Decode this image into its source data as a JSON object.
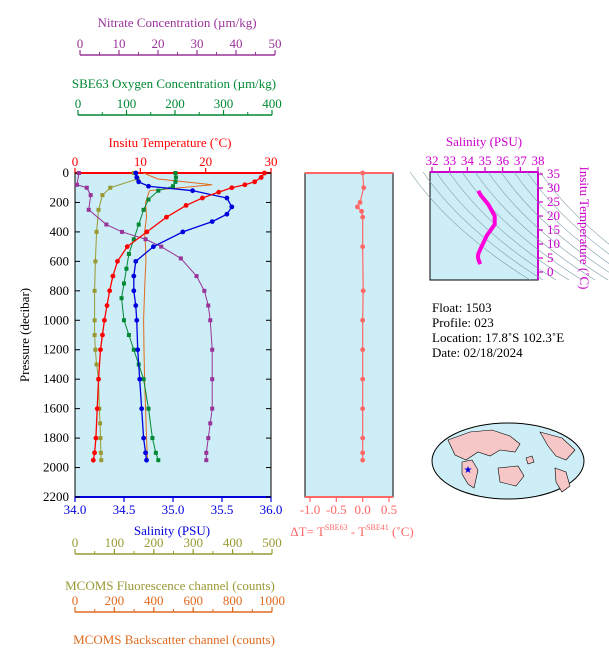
{
  "colors": {
    "panel_bg": "#cdeef6",
    "temperature": "#ff0000",
    "salinity": "#0000dd",
    "nitrate": "#993399",
    "oxygen": "#008833",
    "fluorescence": "#999933",
    "backscatter": "#e06a1e",
    "delta_t": "#ff6666",
    "ts_curve": "#ff00dd",
    "ts_axis": "#cc00cc"
  },
  "axes": {
    "nitrate": {
      "title": "Nitrate Concentration (µm/kg)",
      "ticks": [
        "0",
        "10",
        "20",
        "30",
        "40",
        "50"
      ],
      "range": [
        0,
        50
      ]
    },
    "oxygen": {
      "title": "SBE63 Oxygen Concentration (µm/kg)",
      "ticks": [
        "0",
        "100",
        "200",
        "300",
        "400"
      ],
      "range": [
        0,
        400
      ]
    },
    "temperature": {
      "title": "Insitu Temperature (˚C)",
      "ticks": [
        "0",
        "10",
        "20",
        "30"
      ],
      "range": [
        0,
        30
      ]
    },
    "salinity": {
      "title": "Salinity (PSU)",
      "ticks": [
        "34.0",
        "34.5",
        "35.0",
        "35.5",
        "36.0"
      ],
      "range": [
        34.0,
        36.0
      ]
    },
    "pressure": {
      "title": "Pressure (decibar)",
      "ticks": [
        "0",
        "200",
        "400",
        "600",
        "800",
        "1000",
        "1200",
        "1400",
        "1600",
        "1800",
        "2000",
        "2200"
      ],
      "range": [
        0,
        2200
      ]
    },
    "fluorescence": {
      "title": "MCOMS Fluorescence channel (counts)",
      "ticks": [
        "0",
        "100",
        "200",
        "300",
        "400",
        "500"
      ],
      "range": [
        0,
        500
      ]
    },
    "backscatter": {
      "title": "MCOMS Backscatter channel (counts)",
      "ticks": [
        "0",
        "200",
        "400",
        "600",
        "800",
        "1000"
      ],
      "range": [
        0,
        1000
      ]
    },
    "delta_t": {
      "title_main": "ΔT= T",
      "sup1": "SBE63",
      "mid": " - T",
      "sup2": "SBE41",
      "unit": " (˚C)",
      "ticks": [
        "-1.0",
        "-0.5",
        "0.0",
        "0.5"
      ],
      "range": [
        -1.0,
        0.5
      ]
    },
    "ts_salinity": {
      "title": "Salinity (PSU)",
      "ticks": [
        "32",
        "33",
        "34",
        "35",
        "36",
        "37",
        "38"
      ],
      "range": [
        32,
        38
      ]
    },
    "ts_temperature": {
      "title": "Insitu Temperature (˚C)",
      "ticks": [
        "0",
        "5",
        "10",
        "15",
        "20",
        "25",
        "30",
        "35"
      ],
      "range": [
        0,
        35
      ]
    }
  },
  "info": {
    "float": "Float:  1503",
    "profile": "Profile:  023",
    "location": "Location:  17.8˚S  102.3˚E",
    "date": "Date:  02/18/2024"
  },
  "chart_data": [
    {
      "type": "line",
      "name": "Insitu Temperature",
      "x": [
        29.0,
        28.5,
        27.5,
        26.0,
        24.0,
        22.0,
        19.5,
        17.0,
        14.0,
        11.0,
        8.0,
        6.5,
        5.8,
        5.3,
        4.9,
        4.5,
        4.2,
        3.9,
        3.6,
        3.4,
        3.2,
        3.0,
        2.8
      ],
      "y": [
        0,
        30,
        60,
        80,
        100,
        130,
        170,
        220,
        300,
        400,
        500,
        600,
        700,
        800,
        900,
        1000,
        1100,
        1200,
        1400,
        1600,
        1800,
        1900,
        1950
      ],
      "xlim": [
        0,
        30
      ],
      "ylim": [
        2200,
        0
      ]
    },
    {
      "type": "line",
      "name": "Salinity",
      "x": [
        34.62,
        34.63,
        34.65,
        34.75,
        35.2,
        35.55,
        35.6,
        35.55,
        35.4,
        35.1,
        34.8,
        34.62,
        34.6,
        34.6,
        34.62,
        34.63,
        34.64,
        34.66,
        34.68,
        34.7,
        34.72,
        34.73
      ],
      "y": [
        0,
        30,
        60,
        90,
        120,
        170,
        230,
        280,
        330,
        400,
        500,
        600,
        700,
        800,
        900,
        1000,
        1200,
        1400,
        1600,
        1800,
        1900,
        1950
      ],
      "xlim": [
        34.0,
        36.0
      ],
      "ylim": [
        2200,
        0
      ]
    },
    {
      "type": "line",
      "name": "Nitrate Concentration",
      "x": [
        1,
        0.5,
        3,
        4,
        3.5,
        8,
        12,
        18,
        22,
        27,
        31,
        33,
        34,
        34.5,
        35,
        35,
        35,
        34.5,
        34,
        33.5,
        33.5
      ],
      "y": [
        0,
        80,
        100,
        150,
        250,
        350,
        400,
        450,
        500,
        580,
        700,
        800,
        900,
        1000,
        1200,
        1400,
        1600,
        1700,
        1800,
        1900,
        1950
      ],
      "xlim": [
        0,
        50
      ],
      "ylim": [
        2200,
        0
      ]
    },
    {
      "type": "line",
      "name": "SBE63 Oxygen Concentration",
      "x": [
        205,
        206,
        205,
        200,
        170,
        150,
        140,
        130,
        120,
        110,
        105,
        100,
        95,
        100,
        110,
        120,
        130,
        140,
        150,
        158,
        165,
        170
      ],
      "y": [
        0,
        30,
        60,
        90,
        120,
        180,
        250,
        350,
        450,
        550,
        650,
        750,
        850,
        1000,
        1100,
        1200,
        1300,
        1400,
        1600,
        1800,
        1900,
        1950
      ],
      "xlim": [
        0,
        400
      ],
      "ylim": [
        2200,
        0
      ]
    },
    {
      "type": "line",
      "name": "MCOMS Fluorescence channel",
      "x": [
        150,
        160,
        90,
        70,
        60,
        55,
        52,
        50,
        50,
        50,
        52,
        55,
        60,
        62,
        64,
        65,
        66,
        67
      ],
      "y": [
        0,
        40,
        100,
        150,
        250,
        400,
        600,
        800,
        1000,
        1100,
        1200,
        1300,
        1400,
        1600,
        1700,
        1800,
        1900,
        1950
      ],
      "xlim": [
        0,
        500
      ],
      "ylim": [
        2200,
        0
      ]
    },
    {
      "type": "line",
      "name": "MCOMS Backscatter channel",
      "x": [
        350,
        420,
        700,
        380,
        360,
        365,
        355,
        360,
        362,
        358,
        355,
        350,
        352,
        355,
        360,
        365,
        368,
        370
      ],
      "y": [
        0,
        40,
        80,
        120,
        200,
        300,
        400,
        500,
        600,
        700,
        800,
        1000,
        1200,
        1400,
        1600,
        1800,
        1900,
        1950
      ],
      "xlim": [
        0,
        1000
      ],
      "ylim": [
        2200,
        0
      ]
    },
    {
      "type": "line",
      "name": "ΔT",
      "x": [
        0.0,
        0.02,
        -0.05,
        -0.1,
        -0.02,
        0.0,
        0.0,
        0.01,
        0.0,
        0.0,
        0.0,
        0.0,
        0.0,
        0.0,
        0.0
      ],
      "y": [
        0,
        100,
        200,
        230,
        260,
        300,
        500,
        800,
        1000,
        1200,
        1400,
        1600,
        1800,
        1900,
        1950
      ],
      "xlim": [
        -1.0,
        0.5
      ],
      "ylim": [
        2200,
        0
      ]
    },
    {
      "type": "line",
      "name": "T-S",
      "x": [
        34.62,
        34.75,
        35.2,
        35.55,
        35.55,
        35.1,
        34.8,
        34.62,
        34.6,
        34.63,
        34.68,
        34.73
      ],
      "y": [
        29.0,
        27.5,
        24.0,
        20.0,
        17.0,
        13.0,
        9.0,
        6.5,
        5.3,
        4.5,
        3.6,
        2.8
      ],
      "xlim": [
        32,
        38
      ],
      "ylim": [
        0,
        35
      ]
    }
  ]
}
